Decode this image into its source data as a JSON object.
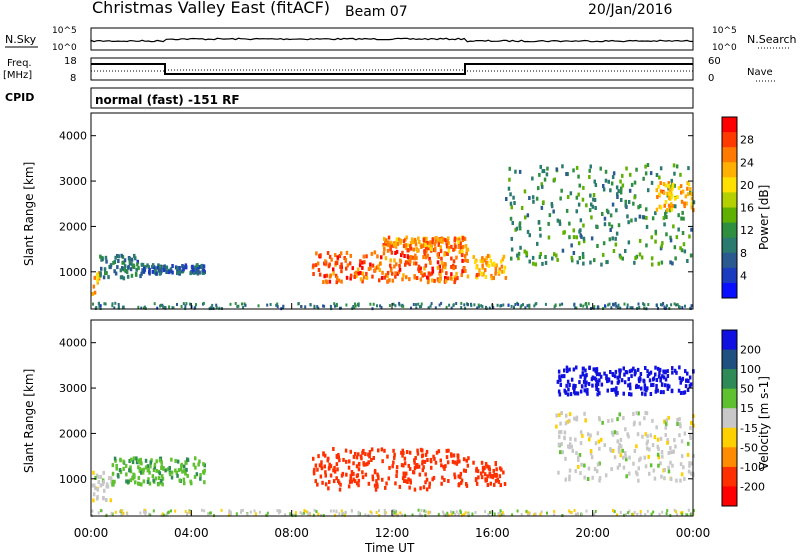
{
  "header": {
    "title": "Christmas Valley East (fitACF)",
    "beam": "Beam 07",
    "date": "20/Jan/2016"
  },
  "top_panels": {
    "nsky_label": "N.Sky",
    "nsearch_label": "N.Search",
    "nsky_ticks": [
      "10^5",
      "10^0"
    ],
    "nsearch_ticks": [
      "10^5",
      "10^0"
    ],
    "freq_label": "Freq.",
    "freq_unit": "[MHz]",
    "freq_ticks": [
      "18",
      "8"
    ],
    "nave_label": "Nave",
    "nave_ticks": [
      "60",
      "0"
    ],
    "cpid_label": "CPID",
    "cpid_text": "normal (fast) -151 RF"
  },
  "colorbars": {
    "power": {
      "label": "Power [dB]",
      "ticks": [
        "28",
        "24",
        "20",
        "16",
        "12",
        "8",
        "4"
      ],
      "colors": [
        "#ff0000",
        "#ff3a00",
        "#ff7a00",
        "#ffb000",
        "#ffe000",
        "#b4d000",
        "#5fb000",
        "#2f8f40",
        "#2a7a70",
        "#2a5a90",
        "#1c3cc0",
        "#0a10ff"
      ]
    },
    "velocity": {
      "label": "Velocity [m s-1]",
      "ticks": [
        "200",
        "100",
        "50",
        "15",
        "-15",
        "-50",
        "-100",
        "-200"
      ],
      "colors": [
        "#1010e0",
        "#205080",
        "#2e8b57",
        "#5fc030",
        "#c8c8c8",
        "#ffd000",
        "#ff8c00",
        "#ff3000",
        "#ff0000"
      ]
    }
  },
  "axes": {
    "ylabel": "Slant Range [km]",
    "yticks": [
      "4000",
      "3000",
      "2000",
      "1000"
    ],
    "xlabel": "Time UT",
    "xticks": [
      "00:00",
      "04:00",
      "08:00",
      "12:00",
      "16:00",
      "20:00",
      "00:00"
    ]
  },
  "chart_data": [
    {
      "type": "heatmap",
      "name": "power",
      "x_range_hours": [
        0,
        24
      ],
      "ylim_km": [
        180,
        4500
      ],
      "xlabel": "Time UT",
      "ylabel": "Slant Range [km]",
      "regions": [
        {
          "t": [
            0.0,
            0.3
          ],
          "r": [
            500,
            1100
          ],
          "value": 22
        },
        {
          "t": [
            0.3,
            2.0
          ],
          "r": [
            900,
            1400
          ],
          "value": 8
        },
        {
          "t": [
            2.0,
            4.5
          ],
          "r": [
            1000,
            1200
          ],
          "value": 6
        },
        {
          "t": [
            8.8,
            15.0
          ],
          "r": [
            800,
            1500
          ],
          "value": 26
        },
        {
          "t": [
            11.5,
            15.0
          ],
          "r": [
            1500,
            1800
          ],
          "value": 24
        },
        {
          "t": [
            15.2,
            16.5
          ],
          "r": [
            900,
            1400
          ],
          "value": 22
        },
        {
          "t": [
            16.5,
            24.0
          ],
          "r": [
            1200,
            3400
          ],
          "value": 10
        },
        {
          "t": [
            22.5,
            24.0
          ],
          "r": [
            2400,
            3000
          ],
          "value": 22
        }
      ]
    },
    {
      "type": "heatmap",
      "name": "velocity",
      "x_range_hours": [
        0,
        24
      ],
      "ylim_km": [
        180,
        4500
      ],
      "xlabel": "Time UT",
      "ylabel": "Slant Range [km]",
      "regions": [
        {
          "t": [
            0.0,
            0.8
          ],
          "r": [
            500,
            1200
          ],
          "value": 0
        },
        {
          "t": [
            0.8,
            4.5
          ],
          "r": [
            900,
            1500
          ],
          "value": 40
        },
        {
          "t": [
            8.8,
            15.0
          ],
          "r": [
            800,
            1700
          ],
          "value": -180
        },
        {
          "t": [
            15.2,
            16.5
          ],
          "r": [
            900,
            1400
          ],
          "value": -180
        },
        {
          "t": [
            18.5,
            24.0
          ],
          "r": [
            2900,
            3500
          ],
          "value": 220
        },
        {
          "t": [
            18.5,
            24.0
          ],
          "r": [
            1000,
            2500
          ],
          "value": 0
        }
      ]
    }
  ]
}
